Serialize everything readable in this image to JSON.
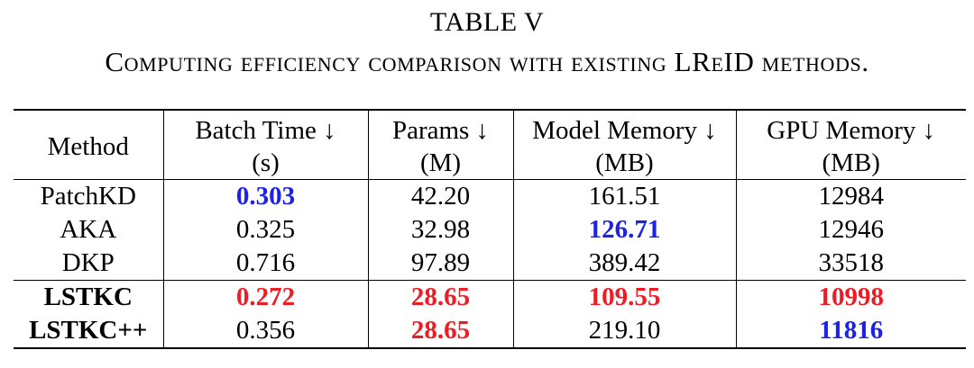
{
  "caption": {
    "number": "TABLE V",
    "text": "Computing efficiency comparison with existing LReID methods."
  },
  "table": {
    "headers": {
      "method": "Method",
      "batch_time_line1": "Batch Time ↓",
      "batch_time_line2": "(s)",
      "params_line1": "Params ↓",
      "params_line2": "(M)",
      "model_memory_line1": "Model Memory ↓",
      "model_memory_line2": "(MB)",
      "gpu_memory_line1": "GPU Memory ↓",
      "gpu_memory_line2": "(MB)"
    },
    "rows": [
      {
        "method": "PatchKD",
        "batch_time": "0.303",
        "params": "42.20",
        "model_memory": "161.51",
        "gpu_memory": "12984"
      },
      {
        "method": "AKA",
        "batch_time": "0.325",
        "params": "32.98",
        "model_memory": "126.71",
        "gpu_memory": "12946"
      },
      {
        "method": "DKP",
        "batch_time": "0.716",
        "params": "97.89",
        "model_memory": "389.42",
        "gpu_memory": "33518"
      },
      {
        "method": "LSTKC",
        "batch_time": "0.272",
        "params": "28.65",
        "model_memory": "109.55",
        "gpu_memory": "10998"
      },
      {
        "method": "LSTKC++",
        "batch_time": "0.356",
        "params": "28.65",
        "model_memory": "219.10",
        "gpu_memory": "11816"
      }
    ],
    "highlight_colors": {
      "best": "#ee1c24",
      "second": "#1d23e6"
    }
  }
}
